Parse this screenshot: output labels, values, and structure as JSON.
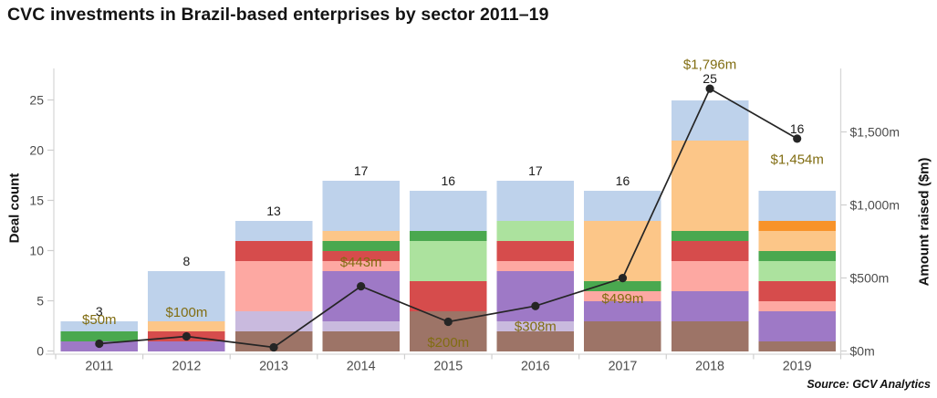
{
  "title": "CVC investments in Brazil-based enterprises by sector 2011–19",
  "source": "Source: GCV Analytics",
  "chart_data": {
    "type": "bar",
    "subtype": "stacked-bar-with-line",
    "title": "CVC investments in Brazil-based enterprises by sector 2011–19",
    "categories": [
      "2011",
      "2012",
      "2013",
      "2014",
      "2015",
      "2016",
      "2017",
      "2018",
      "2019"
    ],
    "bar_totals": [
      3,
      8,
      13,
      17,
      16,
      17,
      16,
      25,
      16
    ],
    "left_axis": {
      "label": "Deal count",
      "ticks": [
        0,
        5,
        10,
        15,
        20,
        25
      ],
      "range": [
        0,
        28
      ]
    },
    "right_axis": {
      "label": "Amount raised ($m)",
      "ticks": [
        {
          "label": "$0m",
          "value": 0
        },
        {
          "label": "$500m",
          "value": 500
        },
        {
          "label": "$1,000m",
          "value": 1000
        },
        {
          "label": "$1,500m",
          "value": 1500
        }
      ],
      "range": [
        0,
        1940
      ]
    },
    "grid": "off",
    "legend": "none",
    "palette": {
      "brown": "#9d7467",
      "lavender": "#c9bade",
      "purple": "#9e79c6",
      "pink": "#fda8a2",
      "red": "#d64c4c",
      "lightgreen": "#ace29e",
      "darkgreen": "#4aa84f",
      "peach": "#fcc688",
      "orange": "#f8932a",
      "lightblue": "#bed2eb"
    },
    "stacks": [
      [
        {
          "color": "purple",
          "value": 1
        },
        {
          "color": "darkgreen",
          "value": 1
        },
        {
          "color": "lightblue",
          "value": 1
        }
      ],
      [
        {
          "color": "purple",
          "value": 1
        },
        {
          "color": "red",
          "value": 1
        },
        {
          "color": "peach",
          "value": 1
        },
        {
          "color": "lightblue",
          "value": 5
        }
      ],
      [
        {
          "color": "brown",
          "value": 2
        },
        {
          "color": "lavender",
          "value": 2
        },
        {
          "color": "pink",
          "value": 5
        },
        {
          "color": "red",
          "value": 2
        },
        {
          "color": "lightblue",
          "value": 2
        }
      ],
      [
        {
          "color": "brown",
          "value": 2
        },
        {
          "color": "lavender",
          "value": 1
        },
        {
          "color": "purple",
          "value": 5
        },
        {
          "color": "pink",
          "value": 1
        },
        {
          "color": "red",
          "value": 1
        },
        {
          "color": "darkgreen",
          "value": 1
        },
        {
          "color": "peach",
          "value": 1
        },
        {
          "color": "lightblue",
          "value": 5
        }
      ],
      [
        {
          "color": "brown",
          "value": 4
        },
        {
          "color": "red",
          "value": 3
        },
        {
          "color": "lightgreen",
          "value": 4
        },
        {
          "color": "darkgreen",
          "value": 1
        },
        {
          "color": "lightblue",
          "value": 4
        }
      ],
      [
        {
          "color": "brown",
          "value": 2
        },
        {
          "color": "lavender",
          "value": 1
        },
        {
          "color": "purple",
          "value": 5
        },
        {
          "color": "pink",
          "value": 1
        },
        {
          "color": "red",
          "value": 2
        },
        {
          "color": "lightgreen",
          "value": 2
        },
        {
          "color": "lightblue",
          "value": 4
        }
      ],
      [
        {
          "color": "brown",
          "value": 3
        },
        {
          "color": "purple",
          "value": 2
        },
        {
          "color": "pink",
          "value": 1
        },
        {
          "color": "darkgreen",
          "value": 1
        },
        {
          "color": "peach",
          "value": 6
        },
        {
          "color": "lightblue",
          "value": 3
        }
      ],
      [
        {
          "color": "brown",
          "value": 3
        },
        {
          "color": "purple",
          "value": 3
        },
        {
          "color": "pink",
          "value": 3
        },
        {
          "color": "red",
          "value": 2
        },
        {
          "color": "darkgreen",
          "value": 1
        },
        {
          "color": "peach",
          "value": 9
        },
        {
          "color": "lightblue",
          "value": 4
        }
      ],
      [
        {
          "color": "brown",
          "value": 1
        },
        {
          "color": "purple",
          "value": 3
        },
        {
          "color": "pink",
          "value": 1
        },
        {
          "color": "red",
          "value": 2
        },
        {
          "color": "lightgreen",
          "value": 2
        },
        {
          "color": "darkgreen",
          "value": 1
        },
        {
          "color": "peach",
          "value": 2
        },
        {
          "color": "orange",
          "value": 1
        },
        {
          "color": "lightblue",
          "value": 3
        }
      ]
    ],
    "line_series": {
      "name": "Amount raised ($m)",
      "values": [
        50,
        100,
        25,
        443,
        200,
        308,
        499,
        1796,
        1454
      ],
      "labels": [
        "$50m",
        "$100m",
        "",
        "$443m",
        "$200m",
        "$308m",
        "$499m",
        "$1,796m",
        "$1,454m"
      ],
      "label_side": [
        "above",
        "above",
        "none",
        "above",
        "below",
        "below",
        "below",
        "above",
        "below"
      ],
      "color": "#252525",
      "label_color": "#816d12"
    }
  }
}
